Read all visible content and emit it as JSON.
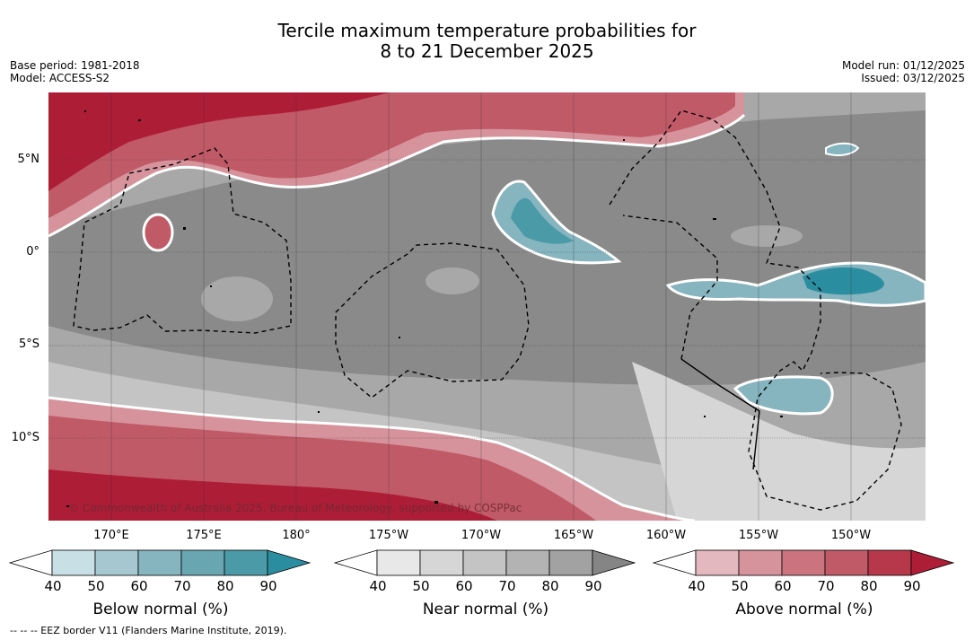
{
  "title": {
    "line1": "Tercile maximum temperature probabilities for",
    "line2": "8 to 21 December 2025"
  },
  "meta_left": {
    "base_period": "Base period: 1981-2018",
    "model": "Model: ACCESS-S2"
  },
  "meta_right": {
    "model_run": "Model run: 01/12/2025",
    "issued": "Issued: 03/12/2025"
  },
  "lat_labels": [
    "5°N",
    "0°",
    "5°S",
    "10°S"
  ],
  "lon_labels": [
    "170°E",
    "175°E",
    "180°",
    "175°W",
    "170°W",
    "165°W",
    "160°W",
    "155°W",
    "150°W"
  ],
  "copyright": "© Commonwealth of Australia 2025, Bureau of Meteorology, supported by COSPPac",
  "colorbars": [
    {
      "title": "Below normal (%)",
      "ticks": [
        "40",
        "50",
        "60",
        "70",
        "80",
        "90"
      ],
      "colors": [
        "#ffffff",
        "#c8dfe5",
        "#a6c7cf",
        "#86b4bf",
        "#68a6b2",
        "#4a9aa8",
        "#2b8ea0"
      ]
    },
    {
      "title": "Near normal (%)",
      "ticks": [
        "40",
        "50",
        "60",
        "70",
        "80",
        "90"
      ],
      "colors": [
        "#ffffff",
        "#e8e8e8",
        "#d6d6d6",
        "#c4c4c4",
        "#b3b3b3",
        "#a2a2a2",
        "#858585"
      ]
    },
    {
      "title": "Above normal (%)",
      "ticks": [
        "40",
        "50",
        "60",
        "70",
        "80",
        "90"
      ],
      "colors": [
        "#ffffff",
        "#e3b8be",
        "#d6939c",
        "#cb747f",
        "#c15a67",
        "#b8384b",
        "#ae1d36"
      ]
    }
  ],
  "footnote": "-- -- -- EEZ border V11 (Flanders Marine Institute, 2019)."
}
